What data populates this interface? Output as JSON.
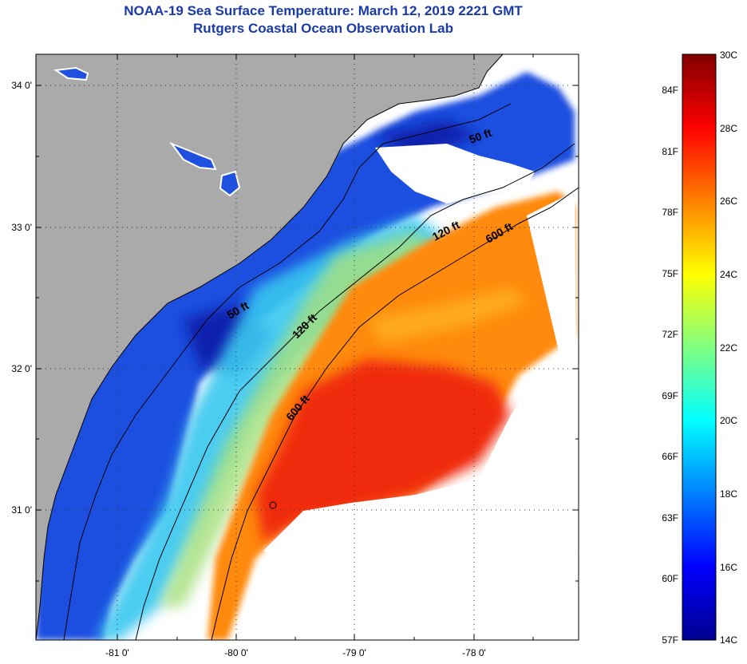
{
  "title": {
    "line1": "NOAA-19 Sea Surface Temperature:  March 12, 2019 2221 GMT",
    "line2": "Rutgers Coastal Ocean Observation Lab"
  },
  "map": {
    "lat_ticks": [
      "34 0'",
      "33 0'",
      "32 0'",
      "31 0'"
    ],
    "lon_ticks": [
      "-81 0'",
      "-80 0'",
      "-79 0'",
      "-78 0'"
    ],
    "contour_labels": [
      "50 ft",
      "50 ft",
      "120 ft",
      "120 ft",
      "600 ft",
      "600 ft"
    ]
  },
  "colorbar": {
    "fahrenheit": [
      "84F",
      "81F",
      "78F",
      "75F",
      "72F",
      "69F",
      "66F",
      "63F",
      "60F",
      "57F"
    ],
    "celsius": [
      "30C",
      "28C",
      "26C",
      "24C",
      "22C",
      "20C",
      "18C",
      "16C",
      "14C"
    ],
    "colors": [
      "#00008f",
      "#0000ff",
      "#0080ff",
      "#00ffff",
      "#80ff80",
      "#ffff00",
      "#ff8000",
      "#ff0000",
      "#800000"
    ]
  }
}
